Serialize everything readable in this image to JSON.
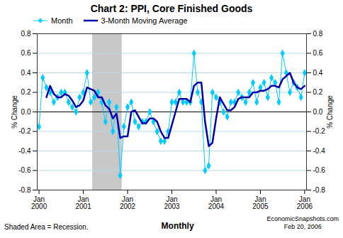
{
  "chart_data": {
    "type": "line",
    "title": "Chart 2: PPI, Core Finished Goods",
    "ylabel": "% Change",
    "y2label": "% Change",
    "categories": [
      "Jan\n2000",
      null,
      null,
      null,
      null,
      null,
      null,
      null,
      null,
      null,
      null,
      null,
      "Jan\n2001",
      null,
      null,
      null,
      null,
      null,
      null,
      null,
      null,
      null,
      null,
      null,
      "Jan\n2002",
      null,
      null,
      null,
      null,
      null,
      null,
      null,
      null,
      null,
      null,
      null,
      "Jan\n2003",
      null,
      null,
      null,
      null,
      null,
      null,
      null,
      null,
      null,
      null,
      null,
      "Jan\n2004",
      null,
      null,
      null,
      null,
      null,
      null,
      null,
      null,
      null,
      null,
      null,
      "Jan\n2005",
      null,
      null,
      null,
      null,
      null,
      null,
      null,
      null,
      null,
      null,
      null,
      "Jan\n2006"
    ],
    "series": [
      {
        "name": "Month",
        "color": "#00CCFF",
        "marker": "diamond",
        "line_style": "solid",
        "values": [
          -0.15,
          0.35,
          0.25,
          0.2,
          0.1,
          0.15,
          0.2,
          0.2,
          0.1,
          0.05,
          0.0,
          0.15,
          0.2,
          0.4,
          0.1,
          0.15,
          0.2,
          0.1,
          -0.1,
          0.1,
          -0.2,
          0.05,
          -0.65,
          -0.15,
          0.05,
          0.1,
          -0.1,
          -0.15,
          -0.1,
          -0.1,
          0.0,
          -0.1,
          -0.2,
          -0.3,
          -0.3,
          -0.2,
          0.1,
          0.1,
          0.2,
          0.1,
          0.1,
          0.1,
          0.6,
          0.2,
          0.1,
          -0.6,
          -0.55,
          0.2,
          0.15,
          0.1,
          0.0,
          -0.05,
          0.1,
          0.1,
          0.2,
          0.15,
          0.1,
          0.2,
          0.3,
          0.1,
          0.25,
          0.3,
          0.15,
          0.35,
          0.3,
          0.1,
          0.6,
          0.4,
          0.2,
          0.3,
          0.25,
          0.15,
          0.4
        ]
      },
      {
        "name": "3-Month Moving Average",
        "color": "#0000AA",
        "line_style": "solid",
        "values": [
          null,
          null,
          0.15,
          0.26666666666666666,
          0.18333333333333332,
          0.15,
          0.15,
          0.18333333333333332,
          0.16666666666666666,
          0.11666666666666665,
          0.05,
          0.06666666666666667,
          0.11666666666666665,
          0.25,
          0.23333333333333334,
          0.21666666666666667,
          0.15,
          0.15,
          0.06666666666666667,
          0.03333333333333333,
          -0.06666666666666667,
          -0.016666666666666666,
          -0.26666666666666666,
          -0.25,
          -0.25,
          0.0,
          0.016666666666666666,
          -0.05,
          -0.11666666666666665,
          -0.11666666666666665,
          -0.06666666666666667,
          -0.06666666666666667,
          -0.1,
          -0.2,
          -0.26666666666666666,
          -0.26666666666666666,
          -0.13333333333333333,
          0.0,
          0.13333333333333333,
          0.13333333333333333,
          0.13333333333333333,
          0.1,
          0.26666666666666666,
          0.3,
          0.3,
          -0.1,
          -0.35,
          -0.31666666666666665,
          -0.06666666666666667,
          0.15,
          0.08333333333333333,
          0.016666666666666666,
          0.016666666666666666,
          0.05,
          0.13333333333333333,
          0.15,
          0.15,
          0.15,
          0.2,
          0.2,
          0.21666666666666667,
          0.21666666666666667,
          0.23333333333333334,
          0.26666666666666666,
          0.26666666666666666,
          0.25,
          0.3333333333333333,
          0.36666666666666664,
          0.4,
          0.3,
          0.25,
          0.23333333333333334,
          0.26666666666666666
        ]
      }
    ],
    "ylim": [
      -0.8,
      0.8
    ],
    "yticks": [
      -0.8,
      -0.6,
      -0.4,
      -0.2,
      {
        "value": 0.0,
        "label": "0.0"
      },
      0.2,
      0.4,
      0.6,
      0.8
    ],
    "y2lim": [
      -0.8,
      0.8
    ],
    "y2ticks": [
      -0.8,
      -0.6,
      -0.4,
      -0.2,
      {
        "value": 0.0,
        "label": "0.0"
      },
      0.2,
      0.4,
      0.6,
      0.8
    ],
    "hline": 0,
    "recession": {
      "start": 15,
      "end": 22,
      "color": "#C8C8C8"
    },
    "grid": true,
    "legend": "upper left",
    "annotations": [
      "Shaded Area = Recession.",
      "Monthly",
      "EconomicSnapshots.com\nFeb 20, 2006"
    ]
  }
}
